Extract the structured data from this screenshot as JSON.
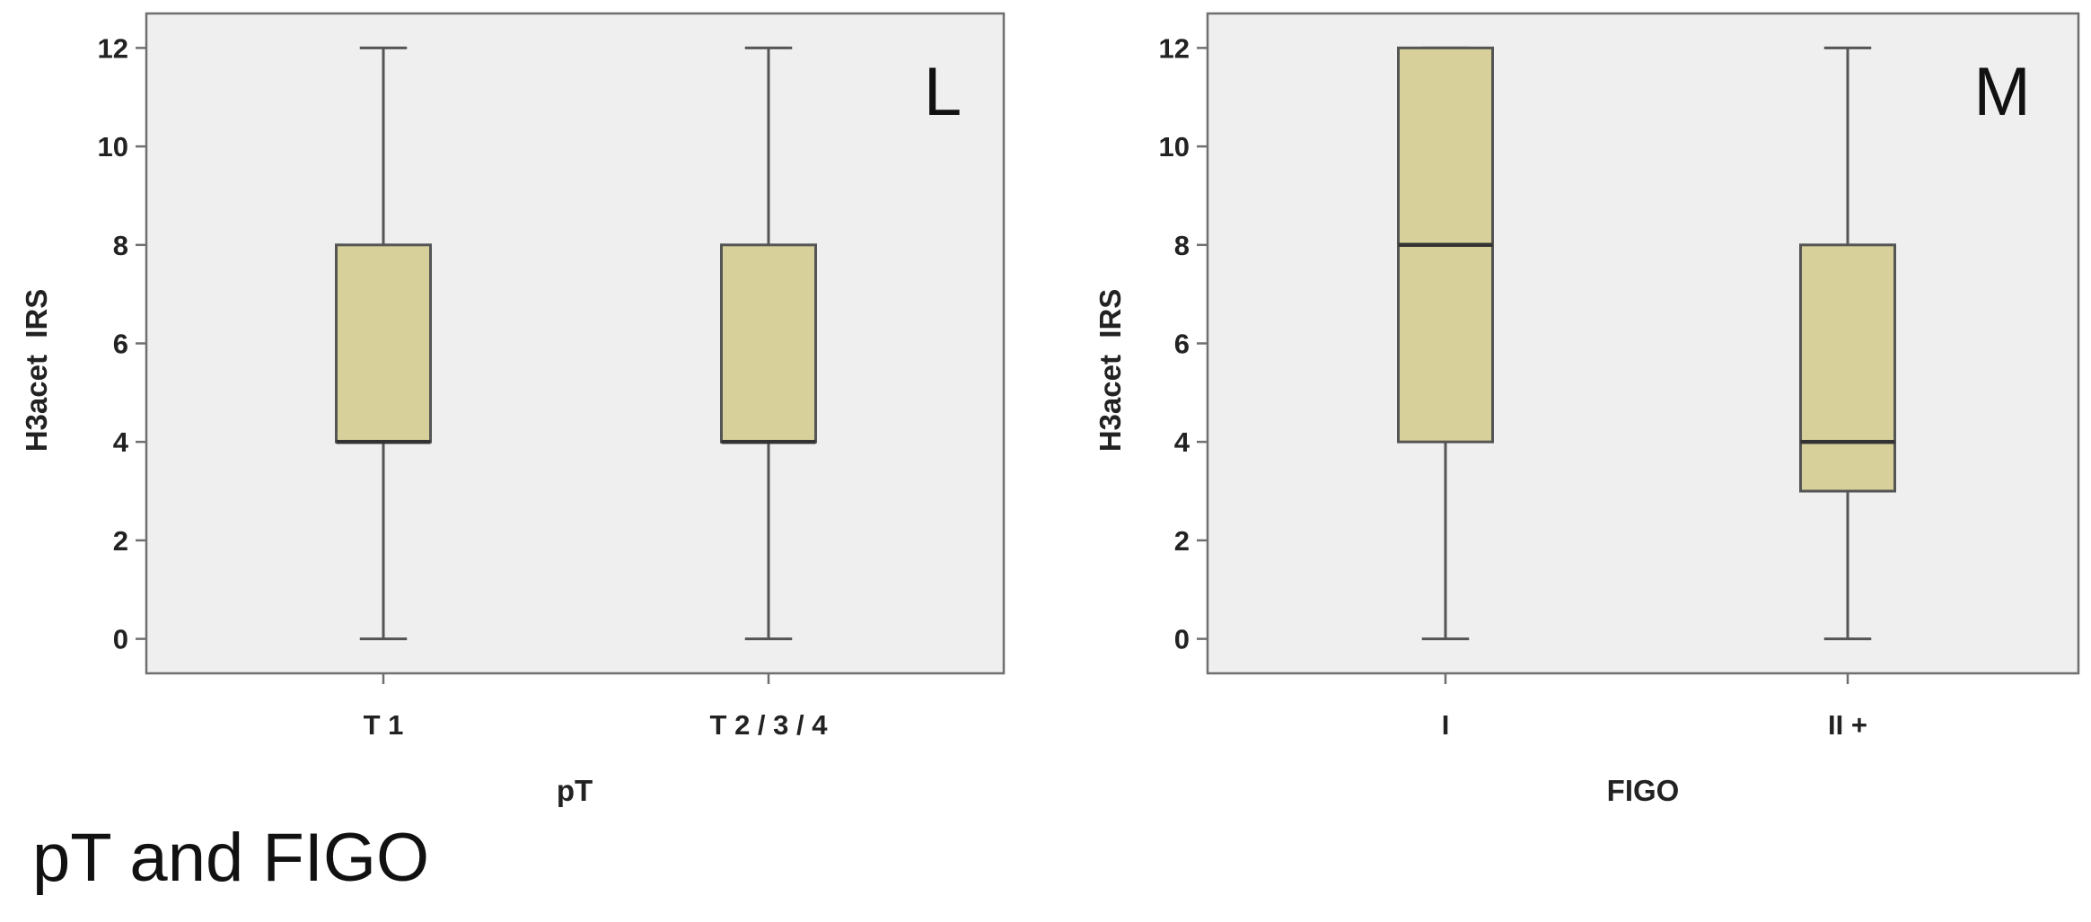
{
  "caption": "pT and FIGO",
  "chart_data": [
    {
      "type": "box",
      "panel_label": "L",
      "xlabel": "pT",
      "ylabel": "H3acet  IRS",
      "ylim": [
        -0.7,
        12.7
      ],
      "yticks": [
        0,
        2,
        4,
        6,
        8,
        10,
        12
      ],
      "yticklabels": [
        "0",
        "2",
        "4",
        "6",
        "8",
        "10",
        "12"
      ],
      "grid": false,
      "categories": [
        "T 1",
        "T 2 / 3 / 4"
      ],
      "boxes": [
        {
          "min": 0,
          "q1": 4,
          "median": 4,
          "q3": 8,
          "max": 12
        },
        {
          "min": 0,
          "q1": 4,
          "median": 4,
          "q3": 8,
          "max": 12
        }
      ],
      "colors": {
        "box": "#d7d09a",
        "background": "#efefef"
      }
    },
    {
      "type": "box",
      "panel_label": "M",
      "xlabel": "FIGO",
      "ylabel": "H3acet  IRS",
      "ylim": [
        -0.7,
        12.7
      ],
      "yticks": [
        0,
        2,
        4,
        6,
        8,
        10,
        12
      ],
      "yticklabels": [
        "0",
        "2",
        "4",
        "6",
        "8",
        "10",
        "12"
      ],
      "grid": false,
      "categories": [
        "I",
        "II +"
      ],
      "boxes": [
        {
          "min": 0,
          "q1": 4,
          "median": 8,
          "q3": 12,
          "max": 12
        },
        {
          "min": 0,
          "q1": 3,
          "median": 4,
          "q3": 8,
          "max": 12
        }
      ],
      "colors": {
        "box": "#d7d09a",
        "background": "#efefef"
      }
    }
  ]
}
